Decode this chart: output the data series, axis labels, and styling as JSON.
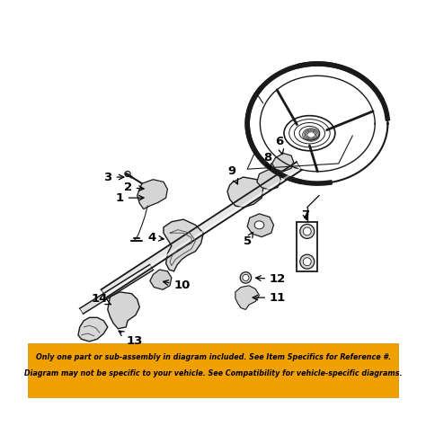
{
  "bg_color": "#ffffff",
  "border_color": "#dddddd",
  "banner_bg": "#f0a000",
  "banner_text_color": "#000000",
  "banner_line1": "Only one part or sub-assembly in diagram included. See Item Specifics for Reference #.",
  "banner_line2": "Diagram may not be specific to your vehicle. See Compatibility for vehicle-specific diagrams.",
  "banner_fontsize": 5.8,
  "fig_width": 4.74,
  "fig_height": 4.74,
  "dpi": 100,
  "line_color": "#1a1a1a",
  "label_fontsize": 9.5
}
